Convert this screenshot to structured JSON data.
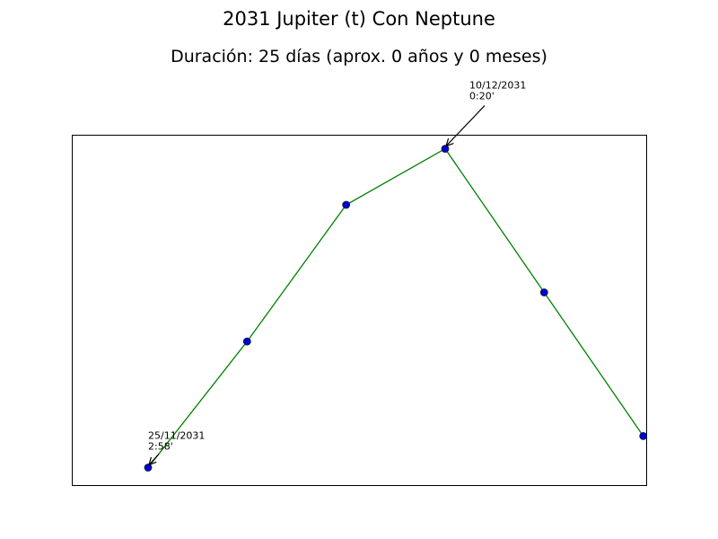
{
  "chart_data": {
    "type": "line",
    "title": "2031 Jupiter (t) Con Neptune",
    "subtitle": "Duración: 25 días (aprox. 0 años y 0 meses)",
    "xlabel": "",
    "ylabel": "",
    "grid": false,
    "axes_ticks": false,
    "line_color": "#008000",
    "marker_color": "#0000cc",
    "series": [
      {
        "x": [
          0,
          1,
          2,
          3,
          4,
          5
        ],
        "y": [
          0.05,
          0.41,
          0.8,
          0.96,
          0.55,
          0.14
        ]
      }
    ],
    "xlim": [
      -0.77,
      5.03
    ],
    "ylim": [
      0.0,
      1.0
    ],
    "annotations": [
      {
        "point_index": 0,
        "line1": "25/11/2031",
        "line2": "2:58'"
      },
      {
        "point_index": 3,
        "line1": "10/12/2031",
        "line2": "0:20'"
      }
    ]
  }
}
